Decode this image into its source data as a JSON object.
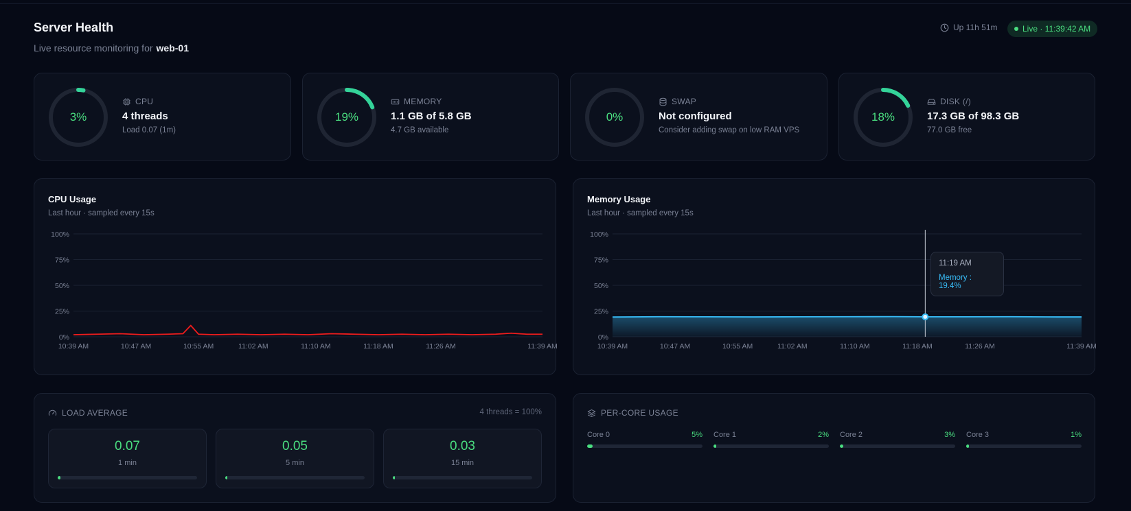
{
  "header": {
    "title": "Server Health",
    "subtitle_prefix": "Live resource monitoring for",
    "host": "web-01",
    "uptime": "Up 11h 51m",
    "live": "Live · 11:39:42 AM"
  },
  "stats": [
    {
      "id": "cpu",
      "icon": "cpu-icon",
      "label": "CPU",
      "percent_text": "3%",
      "percent": 3,
      "main": "4 threads",
      "sub": "Load 0.07 (1m)"
    },
    {
      "id": "memory",
      "icon": "memory-icon",
      "label": "MEMORY",
      "percent_text": "19%",
      "percent": 19,
      "main": "1.1 GB of 5.8 GB",
      "sub": "4.7 GB available"
    },
    {
      "id": "swap",
      "icon": "database-icon",
      "label": "SWAP",
      "percent_text": "0%",
      "percent": 0,
      "main": "Not configured",
      "sub": "Consider adding swap on low RAM VPS"
    },
    {
      "id": "disk",
      "icon": "hard-drive-icon",
      "label": "DISK (/)",
      "percent_text": "18%",
      "percent": 18,
      "main": "17.3 GB of 98.3 GB",
      "sub": "77.0 GB free"
    }
  ],
  "colors": {
    "accent": "#4ade80",
    "cpu_line": "#ef1c1c",
    "memory_line": "#38bdf8",
    "card_bg": "#0b101d",
    "page_bg": "#060a16"
  },
  "cpu_chart": {
    "title": "CPU Usage",
    "subtitle": "Last hour · sampled every 15s"
  },
  "memory_chart": {
    "title": "Memory Usage",
    "subtitle": "Last hour · sampled every 15s"
  },
  "chart_data": [
    {
      "type": "line",
      "title": "CPU Usage",
      "subtitle": "Last hour · sampled every 15s",
      "y_ticks": [
        "100%",
        "75%",
        "50%",
        "25%",
        "0%"
      ],
      "x_ticks": [
        "10:39 AM",
        "10:47 AM",
        "10:55 AM",
        "11:02 AM",
        "11:10 AM",
        "11:18 AM",
        "11:26 AM",
        "11:39 AM"
      ],
      "ylim": [
        0,
        100
      ],
      "grid": true,
      "series": [
        {
          "color": "#ef1c1c",
          "x": [
            "10:39 AM",
            "10:42 AM",
            "10:45 AM",
            "10:48 AM",
            "10:51 AM",
            "10:53 AM",
            "10:54 AM",
            "10:55 AM",
            "10:57 AM",
            "11:00 AM",
            "11:03 AM",
            "11:06 AM",
            "11:09 AM",
            "11:12 AM",
            "11:15 AM",
            "11:18 AM",
            "11:21 AM",
            "11:24 AM",
            "11:27 AM",
            "11:30 AM",
            "11:33 AM",
            "11:35 AM",
            "11:37 AM",
            "11:39 AM"
          ],
          "values": [
            2,
            2.5,
            3,
            2,
            2.5,
            3,
            11,
            2.5,
            2,
            2.5,
            2,
            2.5,
            2,
            3,
            2.5,
            2,
            2.5,
            2,
            2.5,
            2,
            2.5,
            3.5,
            2.5,
            2.5
          ]
        }
      ]
    },
    {
      "type": "area",
      "title": "Memory Usage",
      "subtitle": "Last hour · sampled every 15s",
      "y_ticks": [
        "100%",
        "75%",
        "50%",
        "25%",
        "0%"
      ],
      "x_ticks": [
        "10:39 AM",
        "10:47 AM",
        "10:55 AM",
        "11:02 AM",
        "11:10 AM",
        "11:18 AM",
        "11:26 AM",
        "11:39 AM"
      ],
      "ylim": [
        0,
        100
      ],
      "grid": true,
      "series": [
        {
          "name": "Memory",
          "color": "#38bdf8",
          "x": [
            "10:39 AM",
            "10:45 AM",
            "10:51 AM",
            "10:57 AM",
            "11:03 AM",
            "11:09 AM",
            "11:15 AM",
            "11:19 AM",
            "11:24 AM",
            "11:30 AM",
            "11:36 AM",
            "11:39 AM"
          ],
          "values": [
            19.2,
            19.5,
            19.4,
            19.3,
            19.4,
            19.5,
            19.6,
            19.4,
            19.4,
            19.5,
            19.3,
            19.3
          ]
        }
      ],
      "tooltip": {
        "time": "11:19 AM",
        "label": "Memory : 19.4%"
      }
    }
  ],
  "load": {
    "title": "LOAD AVERAGE",
    "note": "4 threads = 100%",
    "items": [
      {
        "value": "0.07",
        "label": "1 min",
        "fraction": 0.0175
      },
      {
        "value": "0.05",
        "label": "5 min",
        "fraction": 0.0125
      },
      {
        "value": "0.03",
        "label": "15 min",
        "fraction": 0.0075
      }
    ]
  },
  "cores": {
    "title": "PER-CORE USAGE",
    "items": [
      {
        "label": "Core 0",
        "value": "5%",
        "percent": 5
      },
      {
        "label": "Core 1",
        "value": "2%",
        "percent": 2
      },
      {
        "label": "Core 2",
        "value": "3%",
        "percent": 3
      },
      {
        "label": "Core 3",
        "value": "1%",
        "percent": 1
      }
    ]
  }
}
